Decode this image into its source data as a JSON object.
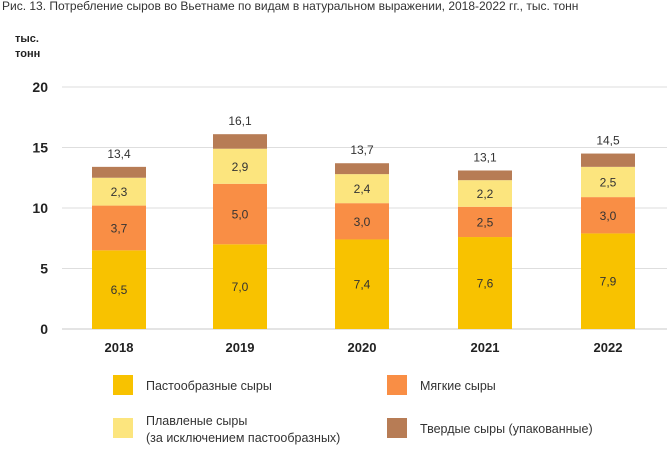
{
  "chart_data": {
    "type": "bar",
    "stacked": true,
    "title": "Рис. 13. Потребление сыров во Вьетнаме по видам в натуральном выражении, 2018-2022 гг., тыс. тонн",
    "ylabel_lines": [
      "тыс.",
      "тонн"
    ],
    "ylim": [
      0,
      20
    ],
    "yticks": [
      "0",
      "5",
      "10",
      "15",
      "20"
    ],
    "ytick_values": [
      0,
      5,
      10,
      15,
      20
    ],
    "grid": true,
    "legend_position": "bottom",
    "categories": [
      "2018",
      "2019",
      "2020",
      "2021",
      "2022"
    ],
    "series": [
      {
        "name": "Пастообразные сыры",
        "color": "#F8C200",
        "values": [
          6.5,
          7.0,
          7.4,
          7.6,
          7.9
        ],
        "labels": [
          "6,5",
          "7,0",
          "7,4",
          "7,6",
          "7,9"
        ]
      },
      {
        "name": "Мягкие сыры",
        "color": "#F98E45",
        "values": [
          3.7,
          5.0,
          3.0,
          2.5,
          3.0
        ],
        "labels": [
          "3,7",
          "5,0",
          "3,0",
          "2,5",
          "3,0"
        ]
      },
      {
        "name": "Плавленые сыры (за исключением пастообразных)",
        "name_lines": [
          "Плавленые сыры",
          "(за исключением пастообразных)"
        ],
        "color": "#FCE57E",
        "values": [
          2.3,
          2.9,
          2.4,
          2.2,
          2.5
        ],
        "labels": [
          "2,3",
          "2,9",
          "2,4",
          "2,2",
          "2,5"
        ]
      },
      {
        "name": "Твердые сыры (упакованные)",
        "color": "#B77C55",
        "values": [
          0.9,
          1.2,
          0.9,
          0.8,
          1.1
        ]
      }
    ],
    "totals": [
      13.4,
      16.1,
      13.7,
      13.1,
      14.5
    ],
    "total_labels": [
      "13,4",
      "16,1",
      "13,7",
      "13,1",
      "14,5"
    ]
  }
}
